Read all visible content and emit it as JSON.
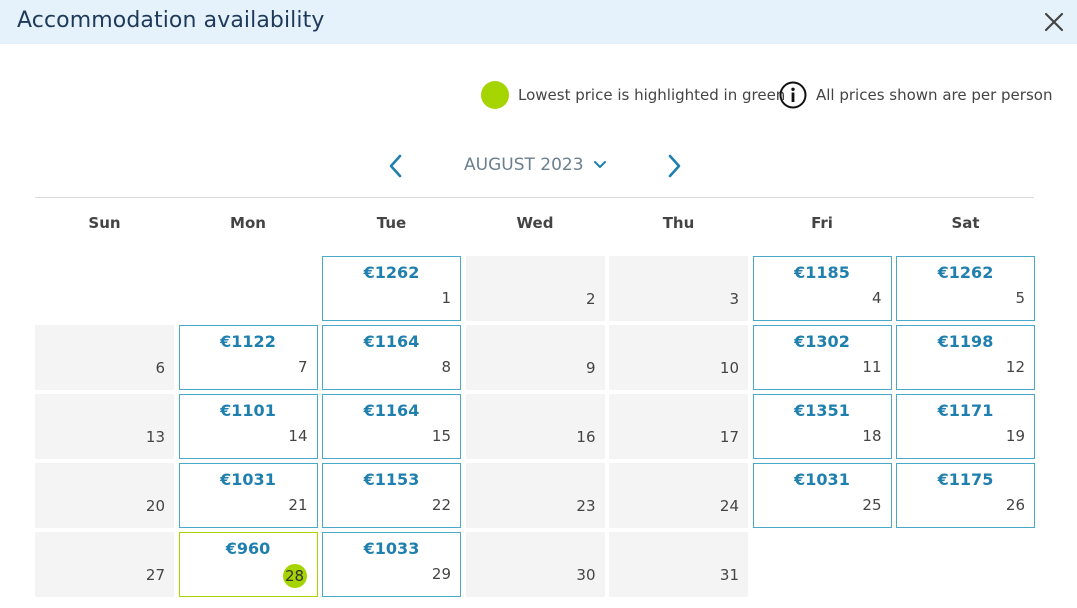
{
  "header": {
    "title": "Accommodation availability"
  },
  "legend": {
    "lowest_text": "Lowest price is highlighted in green",
    "info_text": "All prices shown are per person"
  },
  "calendar": {
    "month_label": "AUGUST 2023",
    "weekdays": [
      "Sun",
      "Mon",
      "Tue",
      "Wed",
      "Thu",
      "Fri",
      "Sat"
    ],
    "first_weekday_index": 2,
    "days_in_month": 31,
    "days": [
      {
        "day": "1",
        "price": "€1262",
        "status": "available"
      },
      {
        "day": "2",
        "price": "",
        "status": "unavailable"
      },
      {
        "day": "3",
        "price": "",
        "status": "unavailable"
      },
      {
        "day": "4",
        "price": "€1185",
        "status": "available"
      },
      {
        "day": "5",
        "price": "€1262",
        "status": "available"
      },
      {
        "day": "6",
        "price": "",
        "status": "unavailable"
      },
      {
        "day": "7",
        "price": "€1122",
        "status": "available"
      },
      {
        "day": "8",
        "price": "€1164",
        "status": "available"
      },
      {
        "day": "9",
        "price": "",
        "status": "unavailable"
      },
      {
        "day": "10",
        "price": "",
        "status": "unavailable"
      },
      {
        "day": "11",
        "price": "€1302",
        "status": "available"
      },
      {
        "day": "12",
        "price": "€1198",
        "status": "available"
      },
      {
        "day": "13",
        "price": "",
        "status": "unavailable"
      },
      {
        "day": "14",
        "price": "€1101",
        "status": "available"
      },
      {
        "day": "15",
        "price": "€1164",
        "status": "available"
      },
      {
        "day": "16",
        "price": "",
        "status": "unavailable"
      },
      {
        "day": "17",
        "price": "",
        "status": "unavailable"
      },
      {
        "day": "18",
        "price": "€1351",
        "status": "available"
      },
      {
        "day": "19",
        "price": "€1171",
        "status": "available"
      },
      {
        "day": "20",
        "price": "",
        "status": "unavailable"
      },
      {
        "day": "21",
        "price": "€1031",
        "status": "available"
      },
      {
        "day": "22",
        "price": "€1153",
        "status": "available"
      },
      {
        "day": "23",
        "price": "",
        "status": "unavailable"
      },
      {
        "day": "24",
        "price": "",
        "status": "unavailable"
      },
      {
        "day": "25",
        "price": "€1031",
        "status": "available"
      },
      {
        "day": "26",
        "price": "€1175",
        "status": "available"
      },
      {
        "day": "27",
        "price": "",
        "status": "unavailable"
      },
      {
        "day": "28",
        "price": "€960",
        "status": "lowest"
      },
      {
        "day": "29",
        "price": "€1033",
        "status": "available"
      },
      {
        "day": "30",
        "price": "",
        "status": "unavailable"
      },
      {
        "day": "31",
        "price": "",
        "status": "unavailable"
      }
    ]
  },
  "colors": {
    "header_bg": "#e6f2fb",
    "lowest_green": "#a5d400",
    "price_blue": "#1f7fae",
    "available_border": "#4aa8c8",
    "unavailable_bg": "#f4f4f4"
  },
  "icons": {
    "close": "close-icon",
    "info": "info-icon",
    "prev": "chevron-left-icon",
    "next": "chevron-right-icon",
    "dropdown": "chevron-down-icon"
  }
}
